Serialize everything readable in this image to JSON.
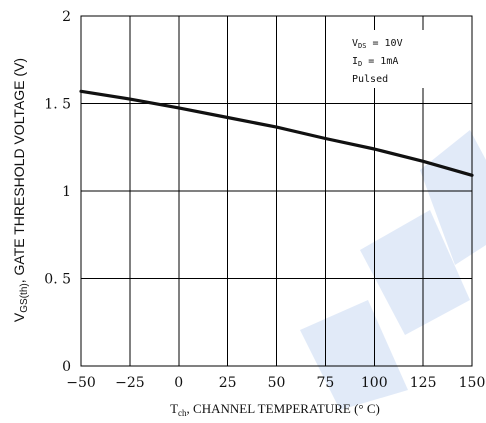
{
  "chart_data": {
    "type": "line",
    "xlabel": {
      "main": "T",
      "sub": "ch",
      "rest": ", CHANNEL TEMPERATURE (° C)"
    },
    "ylabel": {
      "main": "V",
      "sub": "GS(th)",
      "rest": ", GATE THRESHOLD VOLTAGE (V)"
    },
    "xlim": [
      -50,
      150
    ],
    "ylim": [
      0,
      2
    ],
    "xticks": [
      -50,
      -25,
      0,
      25,
      50,
      75,
      100,
      125,
      150
    ],
    "xtick_labels": [
      "−50",
      "−25",
      "0",
      "25",
      "50",
      "75",
      "100",
      "125",
      "150"
    ],
    "yticks": [
      0,
      0.5,
      1,
      1.5,
      2
    ],
    "ytick_labels": [
      "0",
      "0. 5",
      "1",
      "1. 5",
      "2"
    ],
    "grid": true,
    "conditions": [
      {
        "main": "V",
        "sub": "DS",
        "rest": " = 10V"
      },
      {
        "main": "I",
        "sub": "D",
        "rest": " = 1mA"
      },
      {
        "main": "Pulsed",
        "sub": "",
        "rest": ""
      }
    ],
    "series": [
      {
        "x": [
          -50,
          -25,
          0,
          25,
          50,
          75,
          100,
          125,
          150
        ],
        "y": [
          1.57,
          1.525,
          1.475,
          1.42,
          1.365,
          1.3,
          1.24,
          1.17,
          1.09
        ]
      }
    ],
    "colors": {
      "line": "#111111",
      "grid": "#000000",
      "watermark": "#c9d8f2"
    }
  }
}
